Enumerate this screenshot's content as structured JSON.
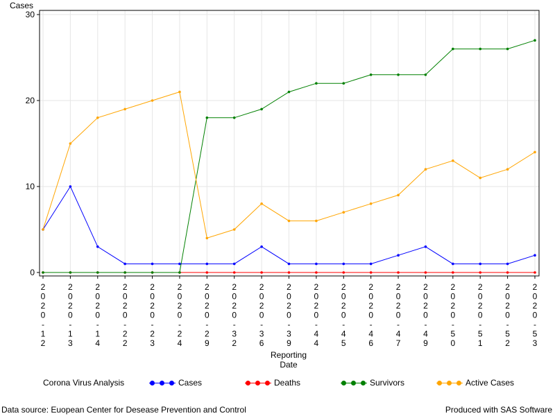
{
  "chart_data": {
    "type": "line",
    "title": "",
    "ylabel": "Cases",
    "xlabel_line1": "Reporting",
    "xlabel_line2": "Date",
    "ylim": [
      0,
      30
    ],
    "yticks": [
      0,
      10,
      20,
      30
    ],
    "grid": true,
    "legend_position": "bottom",
    "categories": [
      "2020-12",
      "2020-13",
      "2020-14",
      "2020-22",
      "2020-23",
      "2020-24",
      "2020-29",
      "2020-32",
      "2020-36",
      "2020-39",
      "2020-44",
      "2020-45",
      "2020-46",
      "2020-47",
      "2020-49",
      "2020-50",
      "2020-51",
      "2020-52",
      "2020-53"
    ],
    "series": [
      {
        "name": "Cases",
        "color": "#0000ff",
        "values": [
          5,
          10,
          3,
          1,
          1,
          1,
          1,
          1,
          3,
          1,
          1,
          1,
          1,
          2,
          3,
          1,
          1,
          1,
          2
        ]
      },
      {
        "name": "Deaths",
        "color": "#ff0000",
        "values": [
          0,
          0,
          0,
          0,
          0,
          0,
          0,
          0,
          0,
          0,
          0,
          0,
          0,
          0,
          0,
          0,
          0,
          0,
          0
        ]
      },
      {
        "name": "Survivors",
        "color": "#008000",
        "values": [
          0,
          0,
          0,
          0,
          0,
          0,
          18,
          18,
          19,
          21,
          22,
          22,
          23,
          23,
          23,
          26,
          26,
          26,
          27
        ]
      },
      {
        "name": "Active Cases",
        "color": "#ffa500",
        "values": [
          5,
          15,
          18,
          19,
          20,
          21,
          4,
          5,
          8,
          6,
          6,
          7,
          8,
          9,
          12,
          13,
          11,
          12,
          14
        ]
      }
    ]
  },
  "legend": {
    "title": "Corona Virus Analysis",
    "items": [
      "Cases",
      "Deaths",
      "Survivors",
      "Active Cases"
    ]
  },
  "footer": {
    "left": "Data source: Euopean Center for Desease Prevention and Control",
    "right": "Produced with SAS Software"
  }
}
